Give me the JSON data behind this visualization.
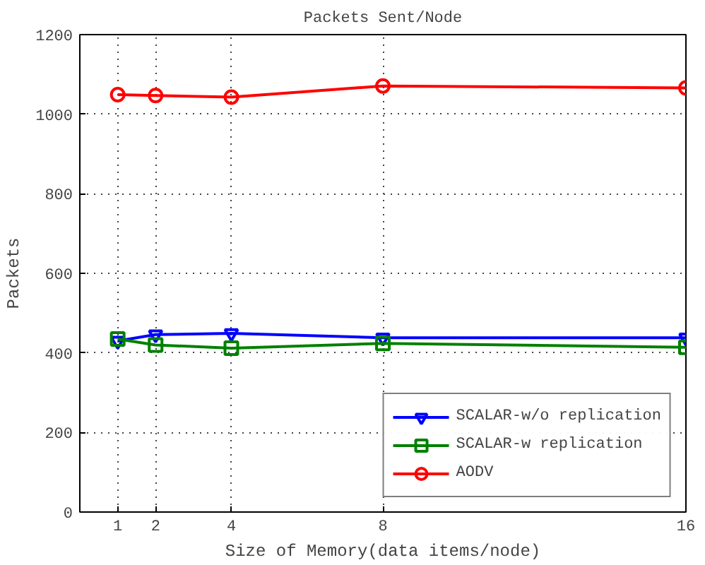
{
  "chart_data": {
    "type": "line",
    "title": "Packets Sent/Node",
    "xlabel": "Size of Memory(data items/node)",
    "ylabel": "Packets",
    "x": [
      1,
      2,
      4,
      8,
      16
    ],
    "series": [
      {
        "name": "SCALAR-w/o replication",
        "color": "#0000ff",
        "marker": "triangle",
        "values": [
          430,
          446,
          449,
          438,
          438
        ]
      },
      {
        "name": "SCALAR-w replication",
        "color": "#008000",
        "marker": "square",
        "values": [
          435,
          420,
          412,
          424,
          414
        ]
      },
      {
        "name": "AODV",
        "color": "#ff0000",
        "marker": "circle",
        "values": [
          1049,
          1047,
          1043,
          1071,
          1066
        ]
      }
    ],
    "xlim": [
      0,
      16
    ],
    "xticks": [
      1,
      2,
      4,
      8,
      16
    ],
    "ylim": [
      0,
      1200
    ],
    "yticks": [
      0,
      200,
      400,
      600,
      800,
      1000,
      1200
    ],
    "grid": true,
    "legend": "bottom right",
    "line_style": "solid"
  }
}
